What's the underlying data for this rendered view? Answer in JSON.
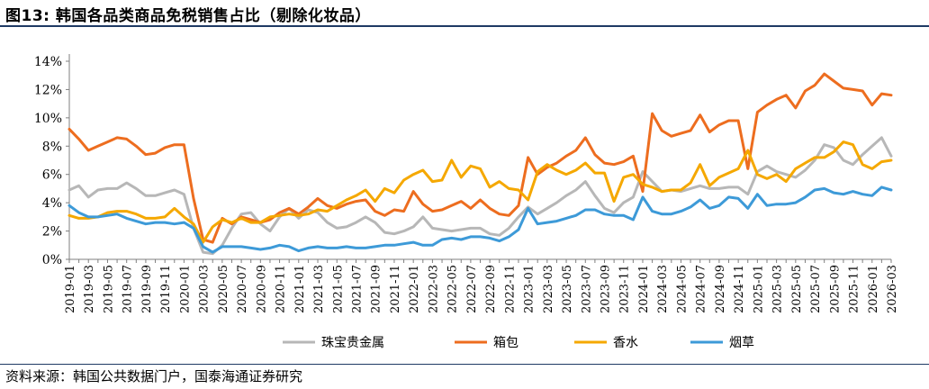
{
  "title": "图13:  韩国各品类商品免税销售占比（剔除化妆品）",
  "source": "资料来源：韩国公共数据门户，国泰海通证券研究",
  "chart_data": {
    "type": "line",
    "title": "",
    "xlabel": "",
    "ylabel": "",
    "ylim": [
      0,
      14
    ],
    "yticks": [
      "0%",
      "2%",
      "4%",
      "6%",
      "8%",
      "10%",
      "12%",
      "14%"
    ],
    "grid": false,
    "legend_position": "bottom",
    "x": [
      "2019-01",
      "2019-02",
      "2019-03",
      "2019-04",
      "2019-05",
      "2019-06",
      "2019-07",
      "2019-08",
      "2019-09",
      "2019-10",
      "2019-11",
      "2019-12",
      "2020-01",
      "2020-02",
      "2020-03",
      "2020-04",
      "2020-05",
      "2020-06",
      "2020-07",
      "2020-08",
      "2020-09",
      "2020-10",
      "2020-11",
      "2020-12",
      "2021-01",
      "2021-02",
      "2021-03",
      "2021-04",
      "2021-05",
      "2021-06",
      "2021-07",
      "2021-08",
      "2021-09",
      "2021-10",
      "2021-11",
      "2021-12",
      "2022-01",
      "2022-02",
      "2022-03",
      "2022-04",
      "2022-05",
      "2022-06",
      "2022-07",
      "2022-08",
      "2022-09",
      "2022-10",
      "2022-11",
      "2022-12",
      "2023-01",
      "2023-02",
      "2023-03",
      "2023-04",
      "2023-05",
      "2023-06",
      "2023-07",
      "2023-08",
      "2023-09",
      "2023-10",
      "2023-11",
      "2023-12",
      "2024-01",
      "2024-02",
      "2024-03",
      "2024-04",
      "2024-05",
      "2024-06",
      "2024-07",
      "2024-08",
      "2024-09",
      "2024-10",
      "2024-11",
      "2024-12",
      "2025-01",
      "2025-02",
      "2025-03",
      "2025-04",
      "2025-05",
      "2025-06",
      "2025-07",
      "2025-08",
      "2025-09",
      "2025-10",
      "2025-11",
      "2025-12",
      "2026-01",
      "2026-02",
      "2026-03"
    ],
    "series": [
      {
        "name": "珠宝贵金属",
        "color": "#b7b7b7",
        "values": [
          4.9,
          5.2,
          4.4,
          4.9,
          5.0,
          5.0,
          5.4,
          5.0,
          4.5,
          4.5,
          4.7,
          4.9,
          4.6,
          2.2,
          0.5,
          0.4,
          1.0,
          2.2,
          3.2,
          3.3,
          2.5,
          2.0,
          3.0,
          3.6,
          2.9,
          3.5,
          3.3,
          2.6,
          2.2,
          2.3,
          2.6,
          3.0,
          2.6,
          1.9,
          1.8,
          2.0,
          2.3,
          3.0,
          2.2,
          2.1,
          2.0,
          2.1,
          2.2,
          2.2,
          1.8,
          1.7,
          2.2,
          3.0,
          3.7,
          3.2,
          3.6,
          4.0,
          4.5,
          4.9,
          5.5,
          4.5,
          3.6,
          3.3,
          4.0,
          4.4,
          6.2,
          5.5,
          4.8,
          4.9,
          4.8,
          5.0,
          5.2,
          5.0,
          5.0,
          5.1,
          5.1,
          4.6,
          6.2,
          6.6,
          6.2,
          6.0,
          5.8,
          6.3,
          7.0,
          8.1,
          7.9,
          7.0,
          6.7,
          7.4,
          8.0,
          8.6,
          7.3
        ]
      },
      {
        "name": "箱包",
        "color": "#ed6d1f",
        "values": [
          9.2,
          8.5,
          7.7,
          8.0,
          8.3,
          8.6,
          8.5,
          8.0,
          7.4,
          7.5,
          7.9,
          8.1,
          8.1,
          4.3,
          1.4,
          1.2,
          2.9,
          2.5,
          3.0,
          2.8,
          2.6,
          2.8,
          3.3,
          3.6,
          3.2,
          3.7,
          4.3,
          3.8,
          3.6,
          3.9,
          4.1,
          4.2,
          3.4,
          3.1,
          3.5,
          3.4,
          4.8,
          3.9,
          3.4,
          3.5,
          3.8,
          4.1,
          3.6,
          4.2,
          3.6,
          3.2,
          3.1,
          3.8,
          7.2,
          6.0,
          6.5,
          6.8,
          7.3,
          7.7,
          8.6,
          7.4,
          6.8,
          6.7,
          6.9,
          7.3,
          4.8,
          10.3,
          9.1,
          8.7,
          8.9,
          9.1,
          10.2,
          9.0,
          9.5,
          9.8,
          9.8,
          6.4,
          10.4,
          10.9,
          11.3,
          11.6,
          10.7,
          11.9,
          12.3,
          13.1,
          12.6,
          12.1,
          12.0,
          11.9,
          10.9,
          11.7,
          11.6
        ]
      },
      {
        "name": "香水",
        "color": "#f5a800",
        "values": [
          3.1,
          2.9,
          2.9,
          3.0,
          3.3,
          3.4,
          3.4,
          3.2,
          2.9,
          2.9,
          3.0,
          3.6,
          3.0,
          2.5,
          1.2,
          2.3,
          2.8,
          2.6,
          2.9,
          2.6,
          2.6,
          3.0,
          3.1,
          3.2,
          3.1,
          3.2,
          3.5,
          3.4,
          3.8,
          4.2,
          4.5,
          4.9,
          4.1,
          5.0,
          4.7,
          5.6,
          6.0,
          6.3,
          5.5,
          5.6,
          7.0,
          5.8,
          6.6,
          6.4,
          5.1,
          5.5,
          5.0,
          4.9,
          4.2,
          6.2,
          6.7,
          6.3,
          6.0,
          6.3,
          6.8,
          6.1,
          6.1,
          4.1,
          5.8,
          6.0,
          5.3,
          5.1,
          4.8,
          4.9,
          4.9,
          5.4,
          6.7,
          5.2,
          5.8,
          6.1,
          6.4,
          7.7,
          6.0,
          5.7,
          6.0,
          5.5,
          6.4,
          6.8,
          7.2,
          7.2,
          7.6,
          8.3,
          8.1,
          6.7,
          6.4,
          6.9,
          7.0
        ]
      },
      {
        "name": "烟草",
        "color": "#3d9ad8",
        "values": [
          3.8,
          3.3,
          3.0,
          3.0,
          3.1,
          3.2,
          2.9,
          2.7,
          2.5,
          2.6,
          2.6,
          2.5,
          2.6,
          2.2,
          0.9,
          0.5,
          0.9,
          0.9,
          0.9,
          0.8,
          0.7,
          0.8,
          1.0,
          0.9,
          0.6,
          0.8,
          0.9,
          0.8,
          0.8,
          0.9,
          0.8,
          0.8,
          0.9,
          1.0,
          1.0,
          1.1,
          1.2,
          1.0,
          1.0,
          1.4,
          1.5,
          1.4,
          1.6,
          1.6,
          1.5,
          1.3,
          1.6,
          2.1,
          3.6,
          2.5,
          2.6,
          2.7,
          2.9,
          3.1,
          3.5,
          3.5,
          3.2,
          3.1,
          3.1,
          2.8,
          4.4,
          3.4,
          3.2,
          3.2,
          3.4,
          3.7,
          4.2,
          3.6,
          3.8,
          4.4,
          4.3,
          3.6,
          4.6,
          3.8,
          3.9,
          3.9,
          4.0,
          4.4,
          4.9,
          5.0,
          4.7,
          4.6,
          4.8,
          4.6,
          4.5,
          5.1,
          4.9
        ]
      }
    ]
  }
}
